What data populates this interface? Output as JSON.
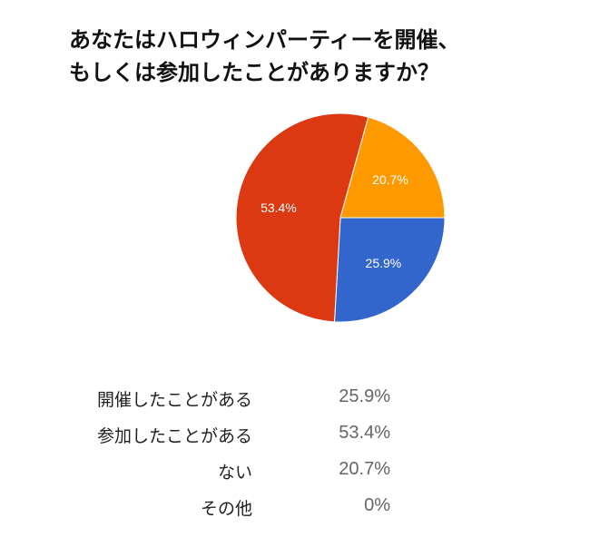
{
  "chart_data": {
    "type": "pie",
    "title_lines": [
      "あなたはハロウィンパーティーを開催、",
      "もしくは参加したことがありますか？"
    ],
    "slices": [
      {
        "label": "開催したことがある",
        "value": 25.9,
        "display": "25.9%",
        "color": "#3366cc"
      },
      {
        "label": "参加したことがある",
        "value": 53.4,
        "display": "53.4%",
        "color": "#dc3912"
      },
      {
        "label": "ない",
        "value": 20.7,
        "display": "20.7%",
        "color": "#ff9900"
      },
      {
        "label": "その他",
        "value": 0,
        "display": "0%",
        "color": "#109618"
      }
    ],
    "legend_placement": "bottom",
    "slice_label_color": "#ffffff"
  }
}
